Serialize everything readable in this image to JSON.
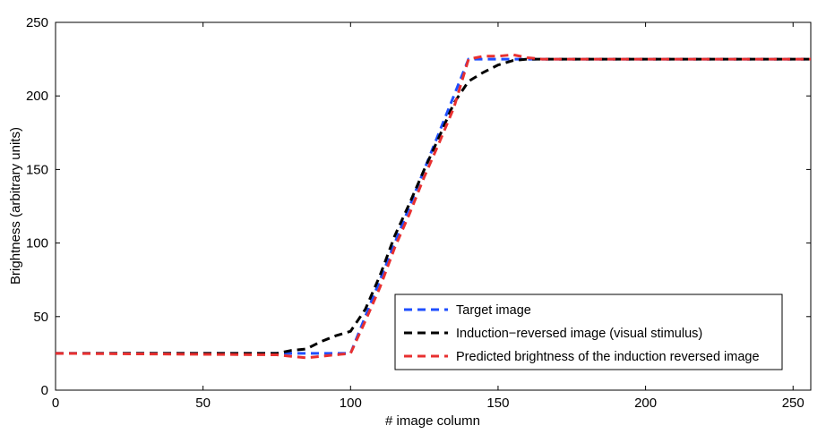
{
  "chart_data": {
    "type": "line",
    "title": "",
    "xlabel": "# image column",
    "ylabel": "Brightness (arbitrary units)",
    "xlim": [
      0,
      256
    ],
    "ylim": [
      0,
      250
    ],
    "xticks": [
      0,
      50,
      100,
      150,
      200,
      250
    ],
    "yticks": [
      0,
      50,
      100,
      150,
      200,
      250
    ],
    "grid": false,
    "legend_position": "bottom-right",
    "series": [
      {
        "name": "Target image",
        "color": "#1f4fff",
        "dash": "dashed",
        "points": [
          [
            0,
            25
          ],
          [
            100,
            25
          ],
          [
            140,
            225
          ],
          [
            150,
            225
          ],
          [
            160,
            225
          ],
          [
            256,
            225
          ]
        ]
      },
      {
        "name": "Induction−reversed image (visual stimulus)",
        "color": "#000000",
        "dash": "dashed",
        "points": [
          [
            0,
            25
          ],
          [
            75,
            25
          ],
          [
            80,
            27
          ],
          [
            85,
            28
          ],
          [
            90,
            33
          ],
          [
            95,
            37
          ],
          [
            100,
            40
          ],
          [
            105,
            55
          ],
          [
            110,
            78
          ],
          [
            115,
            105
          ],
          [
            120,
            127
          ],
          [
            125,
            150
          ],
          [
            130,
            172
          ],
          [
            135,
            195
          ],
          [
            140,
            210
          ],
          [
            145,
            216
          ],
          [
            150,
            221
          ],
          [
            155,
            224
          ],
          [
            160,
            225
          ],
          [
            165,
            225
          ],
          [
            256,
            225
          ]
        ]
      },
      {
        "name": "Predicted brightness of the induction reversed image",
        "color": "#e83030",
        "dash": "dashed",
        "points": [
          [
            0,
            25
          ],
          [
            75,
            24
          ],
          [
            80,
            23
          ],
          [
            85,
            22
          ],
          [
            90,
            23
          ],
          [
            95,
            24
          ],
          [
            100,
            25
          ],
          [
            105,
            47
          ],
          [
            110,
            70
          ],
          [
            115,
            97
          ],
          [
            120,
            120
          ],
          [
            125,
            145
          ],
          [
            130,
            168
          ],
          [
            135,
            192
          ],
          [
            140,
            225
          ],
          [
            145,
            227
          ],
          [
            150,
            227
          ],
          [
            155,
            228
          ],
          [
            160,
            226
          ],
          [
            165,
            225
          ],
          [
            256,
            225
          ]
        ]
      }
    ]
  }
}
